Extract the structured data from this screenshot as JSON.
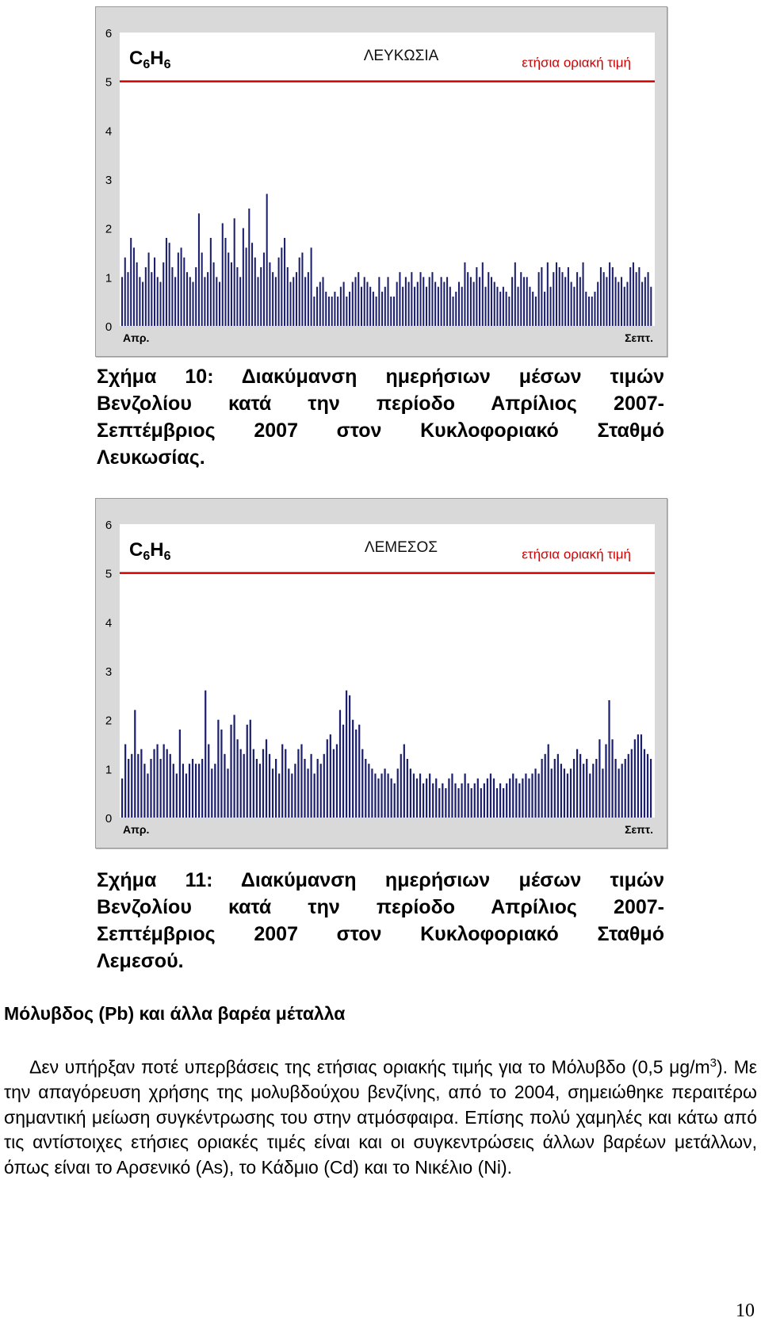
{
  "chart_data": [
    {
      "type": "bar",
      "title": "ΛΕΥΚΩΣΙΑ",
      "formula": {
        "c": "C",
        "n1": "6",
        "h": "H",
        "n2": "6"
      },
      "limit_label": "ετήσια οριακή τιμή",
      "limit_value": 5,
      "ylim": [
        0,
        6
      ],
      "yticks": [
        0,
        1,
        2,
        3,
        4,
        5,
        6
      ],
      "x_start_label": "Απρ.",
      "x_end_label": "Σεπτ.",
      "bar_color": "#1c1f6e",
      "limit_color": "#d00000",
      "values": [
        1.0,
        1.4,
        1.1,
        1.8,
        1.6,
        1.3,
        1.0,
        0.9,
        1.2,
        1.5,
        1.1,
        1.4,
        1.0,
        0.9,
        1.3,
        1.8,
        1.7,
        1.2,
        1.0,
        1.5,
        1.6,
        1.4,
        1.1,
        1.0,
        0.9,
        1.2,
        2.3,
        1.5,
        1.0,
        1.1,
        1.8,
        1.3,
        1.0,
        0.9,
        2.1,
        1.8,
        1.5,
        1.3,
        2.2,
        1.2,
        1.0,
        2.0,
        1.6,
        2.4,
        1.7,
        1.4,
        1.0,
        1.2,
        1.5,
        2.7,
        1.3,
        1.1,
        1.0,
        1.4,
        1.6,
        1.8,
        1.2,
        0.9,
        1.0,
        1.1,
        1.4,
        1.5,
        1.0,
        1.1,
        1.6,
        0.6,
        0.8,
        0.9,
        1.0,
        0.7,
        0.6,
        0.6,
        0.7,
        0.6,
        0.8,
        0.9,
        0.6,
        0.7,
        0.9,
        1.0,
        1.1,
        0.8,
        1.0,
        0.9,
        0.8,
        0.7,
        0.6,
        1.0,
        0.7,
        0.8,
        1.0,
        0.6,
        0.6,
        0.9,
        1.1,
        0.8,
        1.0,
        0.9,
        1.1,
        0.8,
        0.9,
        1.1,
        1.0,
        0.8,
        1.0,
        1.1,
        0.9,
        0.8,
        1.0,
        0.9,
        1.0,
        0.8,
        0.6,
        0.7,
        0.9,
        0.8,
        1.3,
        1.1,
        1.0,
        0.9,
        1.2,
        1.0,
        1.3,
        0.8,
        1.1,
        1.0,
        0.9,
        0.8,
        0.7,
        0.8,
        0.7,
        0.6,
        1.0,
        1.3,
        0.8,
        1.1,
        1.0,
        1.0,
        0.8,
        0.7,
        0.6,
        1.1,
        1.2,
        0.7,
        1.3,
        0.8,
        1.1,
        1.3,
        1.2,
        1.1,
        1.0,
        1.2,
        0.9,
        0.8,
        1.1,
        1.0,
        1.3,
        0.7,
        0.6,
        0.6,
        0.7,
        0.9,
        1.2,
        1.1,
        1.0,
        1.3,
        1.2,
        1.0,
        0.9,
        1.0,
        0.8,
        0.9,
        1.2,
        1.3,
        1.1,
        1.2,
        0.9,
        1.0,
        1.1,
        0.8
      ]
    },
    {
      "type": "bar",
      "title": "ΛΕΜΕΣΟΣ",
      "formula": {
        "c": "C",
        "n1": "6",
        "h": "H",
        "n2": "6"
      },
      "limit_label": "ετήσια οριακή τιμή",
      "limit_value": 5,
      "ylim": [
        0,
        6
      ],
      "yticks": [
        0,
        1,
        2,
        3,
        4,
        5,
        6
      ],
      "x_start_label": "Απρ.",
      "x_end_label": "Σεπτ.",
      "bar_color": "#1c1f6e",
      "limit_color": "#d00000",
      "values": [
        0.8,
        1.5,
        1.2,
        1.3,
        2.2,
        1.3,
        1.4,
        1.1,
        0.9,
        1.2,
        1.4,
        1.5,
        1.2,
        1.5,
        1.4,
        1.3,
        1.1,
        0.9,
        1.8,
        1.1,
        0.9,
        1.1,
        1.2,
        1.1,
        1.1,
        1.2,
        2.6,
        1.5,
        1.0,
        1.1,
        2.0,
        1.8,
        1.3,
        1.0,
        1.9,
        2.1,
        1.6,
        1.4,
        1.3,
        1.9,
        2.0,
        1.4,
        1.2,
        1.1,
        1.4,
        1.6,
        1.3,
        1.0,
        1.2,
        0.9,
        1.5,
        1.4,
        1.0,
        0.9,
        1.1,
        1.4,
        1.5,
        1.2,
        1.0,
        1.3,
        0.9,
        1.2,
        1.1,
        1.3,
        1.6,
        1.7,
        1.4,
        1.5,
        2.2,
        1.9,
        2.6,
        2.5,
        2.0,
        1.8,
        1.9,
        1.4,
        1.2,
        1.1,
        1.0,
        0.9,
        0.8,
        0.9,
        1.0,
        0.9,
        0.8,
        0.7,
        1.0,
        1.3,
        1.5,
        1.2,
        1.0,
        0.9,
        0.8,
        0.9,
        0.7,
        0.8,
        0.9,
        0.7,
        0.8,
        0.6,
        0.7,
        0.6,
        0.8,
        0.9,
        0.7,
        0.6,
        0.7,
        0.9,
        0.7,
        0.6,
        0.7,
        0.8,
        0.6,
        0.7,
        0.8,
        0.9,
        0.8,
        0.6,
        0.7,
        0.6,
        0.7,
        0.8,
        0.9,
        0.8,
        0.7,
        0.8,
        0.9,
        0.8,
        0.9,
        1.0,
        0.9,
        1.2,
        1.3,
        1.5,
        1.0,
        1.2,
        1.3,
        1.1,
        1.0,
        0.9,
        1.0,
        1.2,
        1.4,
        1.3,
        1.1,
        1.2,
        0.9,
        1.1,
        1.2,
        1.6,
        1.0,
        1.5,
        2.4,
        1.6,
        1.2,
        1.0,
        1.1,
        1.2,
        1.3,
        1.4,
        1.6,
        1.7,
        1.7,
        1.4,
        1.3,
        1.2
      ]
    }
  ],
  "captions": {
    "fig10": {
      "line1": "Σχήμα 10: Διακύμανση ημερήσιων μέσων τιμών",
      "line2": "Βενζολίου κατά την περίοδο Απρίλιος 2007-",
      "line3": "Σεπτέμβριος 2007 στον Κυκλοφοριακό Σταθμό",
      "line4": "Λευκωσίας."
    },
    "fig11": {
      "line1": "Σχήμα 11: Διακύμανση ημερήσιων μέσων τιμών",
      "line2": "Βενζολίου κατά την περίοδο Απρίλιος 2007-",
      "line3": "Σεπτέμβριος 2007 στον Κυκλοφοριακό Σταθμό",
      "line4": "Λεμεσού."
    }
  },
  "section": {
    "heading": "Μόλυβδος (Pb) και άλλα βαρέα μέταλλα",
    "para_part1": "Δεν υπήρξαν ποτέ υπερβάσεις της ετήσιας οριακής τιμής για το Μόλυβδο (0,5 μg/m",
    "para_sup": "3",
    "para_part2": "). Με την απαγόρευση χρήσης της μολυβδούχου βενζίνης, από το 2004, σημειώθηκε περαιτέρω σημαντική μείωση συγκέντρωσης του στην ατμόσφαιρα. Επίσης πολύ χαμηλές και κάτω από τις αντίστοιχες ετήσιες οριακές τιμές είναι και οι συγκεντρώσεις άλλων βαρέων μετάλλων, όπως είναι το Αρσενικό (As), το Κάδμιο (Cd) και το Νικέλιο (Ni)."
  },
  "page_number": "10"
}
